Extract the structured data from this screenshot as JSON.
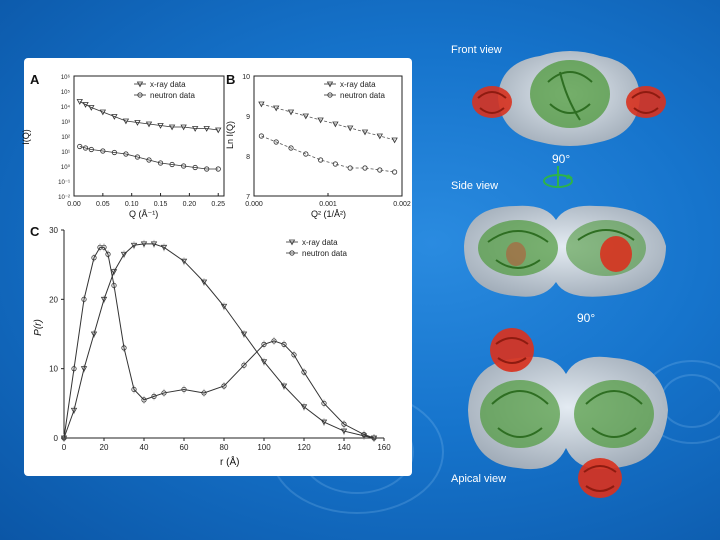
{
  "figure": {
    "panels": [
      "A",
      "B",
      "C"
    ],
    "panelA": {
      "ylabel": "I(Q)",
      "xlabel": "Q (Å⁻¹)",
      "xticks": [
        "0.00",
        "0.05",
        "0.10",
        "0.15",
        "0.20",
        "0.25"
      ],
      "yticks": [
        "10⁶",
        "10⁵",
        "10⁴",
        "10³",
        "10²",
        "10¹",
        "10⁰",
        "10⁻¹",
        "10⁻²"
      ],
      "legend": [
        "x-ray data",
        "neutron data"
      ]
    },
    "panelB": {
      "ylabel": "Ln I(Q)",
      "xlabel": "Q² (1/Å²)",
      "xticks": [
        "0.000",
        "0.001",
        "0.002"
      ],
      "yticks": [
        "10",
        "9",
        "8",
        "7"
      ],
      "legend": [
        "x-ray data",
        "neutron data"
      ]
    },
    "panelC": {
      "ylabel": "P(r)",
      "xlabel": "r (Å)",
      "xticks": [
        "0",
        "20",
        "40",
        "60",
        "80",
        "100",
        "120",
        "140",
        "160"
      ],
      "yticks": [
        "30",
        "20",
        "10",
        "0"
      ],
      "legend": [
        "x-ray data",
        "neutron data"
      ]
    }
  },
  "chart_data": [
    {
      "type": "scatter",
      "panel": "A",
      "ylabel": "I(Q)",
      "xlabel": "Q (Å⁻¹)",
      "xlim": [
        0,
        0.26
      ],
      "yscale": "log",
      "ylim_log10": [
        -2,
        6
      ],
      "series": [
        {
          "name": "x-ray data",
          "x": [
            0.01,
            0.02,
            0.03,
            0.05,
            0.07,
            0.09,
            0.11,
            0.13,
            0.15,
            0.17,
            0.19,
            0.21,
            0.23,
            0.25
          ],
          "log10_y": [
            4.3,
            4.1,
            3.9,
            3.6,
            3.3,
            3.0,
            2.9,
            2.8,
            2.7,
            2.6,
            2.6,
            2.5,
            2.5,
            2.4
          ]
        },
        {
          "name": "neutron data",
          "x": [
            0.01,
            0.02,
            0.03,
            0.05,
            0.07,
            0.09,
            0.11,
            0.13,
            0.15,
            0.17,
            0.19,
            0.21,
            0.23,
            0.25
          ],
          "log10_y": [
            1.3,
            1.2,
            1.1,
            1.0,
            0.9,
            0.8,
            0.6,
            0.4,
            0.2,
            0.1,
            0.0,
            -0.1,
            -0.2,
            -0.2
          ]
        }
      ]
    },
    {
      "type": "scatter",
      "panel": "B",
      "ylabel": "Ln I(Q)",
      "xlabel": "Q² (1/Å²)",
      "xlim": [
        0,
        0.002
      ],
      "ylim": [
        7,
        10
      ],
      "series": [
        {
          "name": "x-ray data",
          "x": [
            0.0001,
            0.0003,
            0.0005,
            0.0007,
            0.0009,
            0.0011,
            0.0013,
            0.0015,
            0.0017,
            0.0019
          ],
          "y": [
            9.3,
            9.2,
            9.1,
            9.0,
            8.9,
            8.8,
            8.7,
            8.6,
            8.5,
            8.4
          ]
        },
        {
          "name": "neutron data",
          "x": [
            0.0001,
            0.0003,
            0.0005,
            0.0007,
            0.0009,
            0.0011,
            0.0013,
            0.0015,
            0.0017,
            0.0019
          ],
          "y": [
            8.5,
            8.35,
            8.2,
            8.05,
            7.9,
            7.8,
            7.7,
            7.7,
            7.65,
            7.6
          ]
        }
      ]
    },
    {
      "type": "line",
      "panel": "C",
      "ylabel": "P(r)",
      "xlabel": "r (Å)",
      "xlim": [
        0,
        160
      ],
      "ylim": [
        0,
        30
      ],
      "series": [
        {
          "name": "x-ray data",
          "x": [
            0,
            5,
            10,
            15,
            20,
            25,
            30,
            35,
            40,
            45,
            50,
            60,
            70,
            80,
            90,
            100,
            110,
            120,
            130,
            140,
            150,
            155
          ],
          "y": [
            0,
            4,
            10,
            15,
            20,
            24,
            26.5,
            27.8,
            28,
            28,
            27.5,
            25.5,
            22.5,
            19,
            15,
            11,
            7.5,
            4.5,
            2.3,
            1,
            0.3,
            0
          ]
        },
        {
          "name": "neutron data",
          "x": [
            0,
            5,
            10,
            15,
            18,
            20,
            22,
            25,
            30,
            35,
            40,
            45,
            50,
            60,
            70,
            80,
            90,
            100,
            105,
            110,
            115,
            120,
            130,
            140,
            150,
            155
          ],
          "y": [
            0,
            10,
            20,
            26,
            27.5,
            27.5,
            26.5,
            22,
            13,
            7,
            5.5,
            6,
            6.5,
            7,
            6.5,
            7.5,
            10.5,
            13.5,
            14,
            13.5,
            12,
            9.5,
            5,
            2,
            0.5,
            0
          ]
        }
      ]
    }
  ],
  "views": {
    "front": "Front view",
    "rotation1": "90°",
    "side": "Side view",
    "rotation2": "90°",
    "apical": "Apical view"
  },
  "colors": {
    "background": "#1674cc",
    "protein_core": "#4f9a3c",
    "protein_domain": "#d8321f",
    "surface": "#c8ccd0"
  }
}
